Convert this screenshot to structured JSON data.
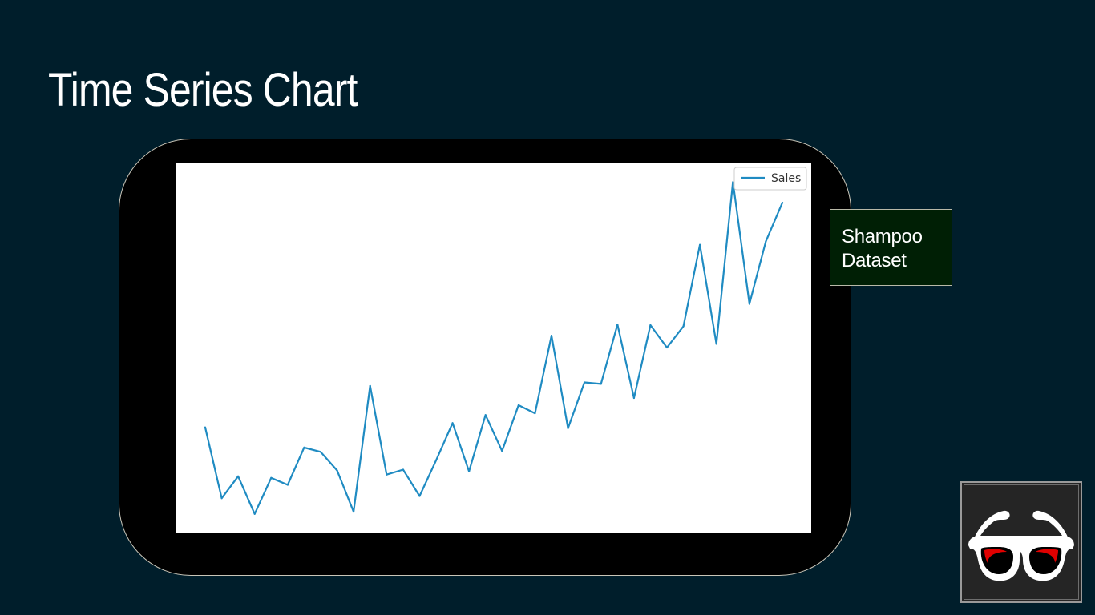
{
  "slide": {
    "title": "Time Series Chart",
    "callout_text": [
      "Shampoo",
      "Dataset"
    ]
  },
  "colors": {
    "background": "#001e2b",
    "series_line": "#1f8bc2",
    "callout_bg": "#001f05"
  },
  "icons": {
    "logo": "glasses-icon"
  },
  "chart_data": {
    "type": "line",
    "title": "",
    "xlabel": "",
    "ylabel": "",
    "x": [
      1,
      2,
      3,
      4,
      5,
      6,
      7,
      8,
      9,
      10,
      11,
      12,
      13,
      14,
      15,
      16,
      17,
      18,
      19,
      20,
      21,
      22,
      23,
      24,
      25,
      26,
      27,
      28,
      29,
      30,
      31,
      32,
      33,
      34,
      35,
      36
    ],
    "series": [
      {
        "name": "Sales",
        "values": [
          266.0,
          145.9,
          183.1,
          119.3,
          180.3,
          168.5,
          231.8,
          224.5,
          192.8,
          122.9,
          336.5,
          185.9,
          194.3,
          149.5,
          210.1,
          273.3,
          191.4,
          287.0,
          226.0,
          303.6,
          289.9,
          421.6,
          264.5,
          342.3,
          339.7,
          440.4,
          315.9,
          439.3,
          401.3,
          437.4,
          575.5,
          407.6,
          682.0,
          475.3,
          581.3,
          646.9
        ]
      }
    ],
    "ylim": [
      100,
      700
    ],
    "grid": false,
    "axis_ticks_visible": false,
    "legend_position": "top-right"
  }
}
